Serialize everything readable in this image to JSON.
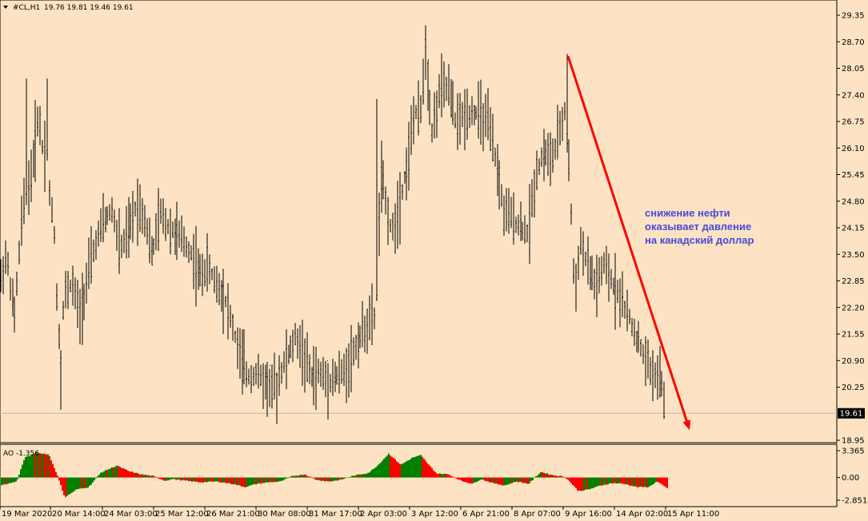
{
  "header": {
    "symbol": "#CL,H1",
    "ohlc": "19.76 19.81 19.46 19.61",
    "dropdown_icon": "triangle-down-icon"
  },
  "chart_data": [
    {
      "type": "candlestick",
      "title": "#CL,H1",
      "ylim": [
        18.95,
        29.65
      ],
      "y_ticks": [
        "29.35",
        "28.70",
        "28.05",
        "27.40",
        "26.75",
        "26.10",
        "25.45",
        "24.80",
        "24.15",
        "23.50",
        "22.85",
        "22.20",
        "21.55",
        "20.90",
        "20.25",
        "19.61",
        "18.95"
      ],
      "current_price": 19.61,
      "current_price_label": "19.61",
      "x_labels": [
        "19 Mar 2020",
        "20 Mar 14:00",
        "24 Mar 03:00",
        "25 Mar 12:00",
        "26 Mar 21:00",
        "30 Mar 08:00",
        "31 Mar 17:00",
        "2 Apr 03:00",
        "3 Apr 12:00",
        "6 Apr 21:00",
        "8 Apr 07:00",
        "9 Apr 16:00",
        "14 Apr 02:00",
        "15 Apr 11:00"
      ],
      "price_path": [
        [
          0,
          22.8
        ],
        [
          8,
          23.5
        ],
        [
          18,
          22.0
        ],
        [
          28,
          24.5
        ],
        [
          40,
          25.5
        ],
        [
          48,
          27.0
        ],
        [
          55,
          25.8
        ],
        [
          58,
          26.5
        ],
        [
          62,
          25.0
        ],
        [
          68,
          24.0
        ],
        [
          72,
          22.0
        ],
        [
          76,
          21.0
        ],
        [
          80,
          22.5
        ],
        [
          90,
          22.8
        ],
        [
          100,
          22.0
        ],
        [
          110,
          23.0
        ],
        [
          120,
          23.8
        ],
        [
          130,
          24.3
        ],
        [
          140,
          24.6
        ],
        [
          150,
          23.6
        ],
        [
          160,
          24.0
        ],
        [
          170,
          24.7
        ],
        [
          180,
          24.5
        ],
        [
          190,
          23.5
        ],
        [
          200,
          24.5
        ],
        [
          210,
          24.2
        ],
        [
          220,
          24.0
        ],
        [
          230,
          23.8
        ],
        [
          240,
          23.5
        ],
        [
          250,
          23.0
        ],
        [
          260,
          23.2
        ],
        [
          270,
          22.8
        ],
        [
          280,
          22.5
        ],
        [
          290,
          21.8
        ],
        [
          300,
          21.0
        ],
        [
          310,
          20.5
        ],
        [
          320,
          20.6
        ],
        [
          330,
          20.4
        ],
        [
          340,
          20.2
        ],
        [
          350,
          20.6
        ],
        [
          360,
          21.0
        ],
        [
          370,
          21.5
        ],
        [
          380,
          21.0
        ],
        [
          390,
          20.5
        ],
        [
          400,
          20.6
        ],
        [
          410,
          20.4
        ],
        [
          420,
          20.5
        ],
        [
          430,
          20.6
        ],
        [
          440,
          21.0
        ],
        [
          450,
          21.5
        ],
        [
          460,
          21.8
        ],
        [
          470,
          22.0
        ],
        [
          476,
          25.5
        ],
        [
          480,
          25.0
        ],
        [
          490,
          24.0
        ],
        [
          500,
          24.8
        ],
        [
          510,
          25.8
        ],
        [
          518,
          27.0
        ],
        [
          525,
          26.8
        ],
        [
          532,
          28.5
        ],
        [
          540,
          26.5
        ],
        [
          550,
          27.5
        ],
        [
          560,
          27.6
        ],
        [
          570,
          26.7
        ],
        [
          580,
          26.9
        ],
        [
          590,
          27.0
        ],
        [
          600,
          26.9
        ],
        [
          610,
          26.7
        ],
        [
          620,
          25.8
        ],
        [
          630,
          24.5
        ],
        [
          640,
          24.4
        ],
        [
          650,
          24.2
        ],
        [
          660,
          24.0
        ],
        [
          670,
          25.5
        ],
        [
          680,
          26.0
        ],
        [
          690,
          25.8
        ],
        [
          700,
          26.5
        ],
        [
          706,
          27.0
        ],
        [
          712,
          25.5
        ],
        [
          718,
          22.5
        ],
        [
          725,
          23.8
        ],
        [
          735,
          23.2
        ],
        [
          745,
          22.7
        ],
        [
          755,
          23.2
        ],
        [
          765,
          22.8
        ],
        [
          775,
          22.5
        ],
        [
          785,
          22.0
        ],
        [
          795,
          21.5
        ],
        [
          805,
          21.0
        ],
        [
          815,
          20.6
        ],
        [
          825,
          20.5
        ],
        [
          833,
          19.6
        ]
      ],
      "trend_arrow": {
        "color": "#ff0000",
        "start": {
          "x_label": "9 Apr 16:00",
          "y": 28.35
        },
        "end": {
          "x_label": "15 Apr 11:00",
          "y": 19.2
        }
      },
      "annotation": [
        "снижение нефти",
        "оказывает давление",
        "на канадский доллар"
      ],
      "colors": {
        "background": "#fde3c3",
        "bars": "#000000",
        "price_line": "#b9b9b9",
        "annotation": "#4a4ad8",
        "arrow": "#ff0000"
      }
    },
    {
      "type": "bar",
      "title": "AO -1.356",
      "ylim": [
        -2.851,
        3.365
      ],
      "y_ticks": [
        "3.365",
        "0.00",
        "-2.851"
      ],
      "colors": {
        "up": "#008000",
        "down": "#ff0000"
      },
      "ao_path": [
        [
          0,
          -1.0
        ],
        [
          20,
          -0.5
        ],
        [
          30,
          2.5
        ],
        [
          45,
          3.1
        ],
        [
          60,
          2.9
        ],
        [
          70,
          0.5
        ],
        [
          80,
          -2.5
        ],
        [
          95,
          -1.5
        ],
        [
          110,
          -1.2
        ],
        [
          125,
          0.6
        ],
        [
          145,
          1.5
        ],
        [
          160,
          0.8
        ],
        [
          175,
          0.4
        ],
        [
          190,
          0.2
        ],
        [
          205,
          -0.4
        ],
        [
          215,
          -0.2
        ],
        [
          230,
          -0.4
        ],
        [
          250,
          -0.6
        ],
        [
          270,
          -0.5
        ],
        [
          290,
          -0.8
        ],
        [
          305,
          -1.2
        ],
        [
          320,
          -0.8
        ],
        [
          335,
          -0.6
        ],
        [
          350,
          -0.5
        ],
        [
          365,
          0.2
        ],
        [
          380,
          0.4
        ],
        [
          395,
          -0.3
        ],
        [
          410,
          -0.5
        ],
        [
          425,
          -0.3
        ],
        [
          440,
          0.2
        ],
        [
          460,
          0.6
        ],
        [
          472,
          1.6
        ],
        [
          485,
          3.0
        ],
        [
          500,
          1.6
        ],
        [
          515,
          2.5
        ],
        [
          525,
          2.8
        ],
        [
          535,
          1.6
        ],
        [
          545,
          0.5
        ],
        [
          560,
          0.4
        ],
        [
          575,
          -0.4
        ],
        [
          590,
          -0.8
        ],
        [
          600,
          -0.2
        ],
        [
          615,
          -0.7
        ],
        [
          630,
          -1.0
        ],
        [
          645,
          -0.5
        ],
        [
          660,
          -0.8
        ],
        [
          675,
          0.7
        ],
        [
          690,
          0.3
        ],
        [
          705,
          0.1
        ],
        [
          712,
          -0.6
        ],
        [
          722,
          -1.7
        ],
        [
          735,
          -1.5
        ],
        [
          750,
          -1.0
        ],
        [
          765,
          -0.7
        ],
        [
          780,
          -0.8
        ],
        [
          795,
          -1.2
        ],
        [
          810,
          -1.2
        ],
        [
          820,
          -0.5
        ],
        [
          833,
          -1.356
        ]
      ]
    }
  ]
}
